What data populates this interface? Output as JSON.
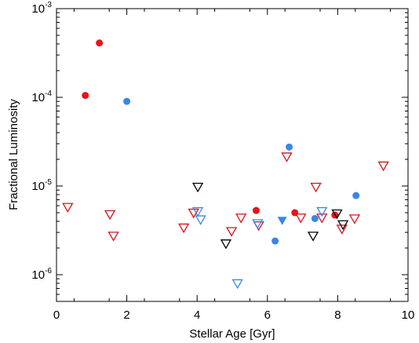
{
  "chart_data": {
    "type": "scatter",
    "title": "",
    "xlabel": "Stellar Age [Gyr]",
    "ylabel": "Fractional Luminosity",
    "xlim": [
      0,
      10
    ],
    "ylim": [
      5e-07,
      0.001
    ],
    "yscale": "log",
    "grid": false,
    "legend": "none",
    "x_ticks": [
      {
        "value": 0,
        "label": "0"
      },
      {
        "value": 2,
        "label": "2"
      },
      {
        "value": 4,
        "label": "4"
      },
      {
        "value": 6,
        "label": "6"
      },
      {
        "value": 8,
        "label": "8"
      },
      {
        "value": 10,
        "label": "10"
      }
    ],
    "y_ticks": [
      {
        "value": 1e-06,
        "base": "10",
        "exp": "-6"
      },
      {
        "value": 1e-05,
        "base": "10",
        "exp": "-5"
      },
      {
        "value": 0.0001,
        "base": "10",
        "exp": "-4"
      },
      {
        "value": 0.001,
        "base": "10",
        "exp": "-3"
      }
    ],
    "series": [
      {
        "marker": "circle-filled",
        "color": "#e8141b",
        "points": [
          [
            0.82,
            0.000105
          ],
          [
            1.22,
            0.00041
          ],
          [
            5.68,
            5.3e-06
          ],
          [
            6.78,
            5e-06
          ],
          [
            7.92,
            4.7e-06
          ]
        ]
      },
      {
        "marker": "circle-filled",
        "color": "#3a86e8",
        "points": [
          [
            2.0,
            9e-05
          ],
          [
            6.22,
            2.4e-06
          ],
          [
            6.62,
            2.75e-05
          ],
          [
            7.35,
            4.3e-06
          ],
          [
            8.52,
            7.8e-06
          ]
        ]
      },
      {
        "marker": "triangle-filled",
        "color": "#3a86e8",
        "points": [
          [
            6.42,
            4.1e-06
          ]
        ]
      },
      {
        "marker": "triangle-open",
        "color": "#d4141b",
        "points": [
          [
            0.32,
            5.8e-06
          ],
          [
            1.52,
            4.8e-06
          ],
          [
            1.62,
            2.75e-06
          ],
          [
            3.62,
            3.4e-06
          ],
          [
            3.9,
            5e-06
          ],
          [
            4.98,
            3.1e-06
          ],
          [
            5.25,
            4.4e-06
          ],
          [
            5.75,
            3.6e-06
          ],
          [
            6.55,
            2.15e-05
          ],
          [
            6.95,
            4.4e-06
          ],
          [
            7.38,
            9.8e-06
          ],
          [
            7.55,
            4.4e-06
          ],
          [
            8.12,
            3.3e-06
          ],
          [
            8.48,
            4.3e-06
          ],
          [
            9.3,
            1.7e-05
          ]
        ]
      },
      {
        "marker": "triangle-open",
        "color": "#3a86e8",
        "points": [
          [
            4.02,
            5.2e-06
          ],
          [
            4.1,
            4.2e-06
          ],
          [
            5.15,
            8e-07
          ],
          [
            5.72,
            3.8e-06
          ],
          [
            7.55,
            5.2e-06
          ]
        ]
      },
      {
        "marker": "triangle-open",
        "color": "#000000",
        "points": [
          [
            4.02,
            9.8e-06
          ],
          [
            4.82,
            2.25e-06
          ],
          [
            7.3,
            2.75e-06
          ],
          [
            7.98,
            4.9e-06
          ],
          [
            8.15,
            3.7e-06
          ]
        ]
      }
    ]
  }
}
